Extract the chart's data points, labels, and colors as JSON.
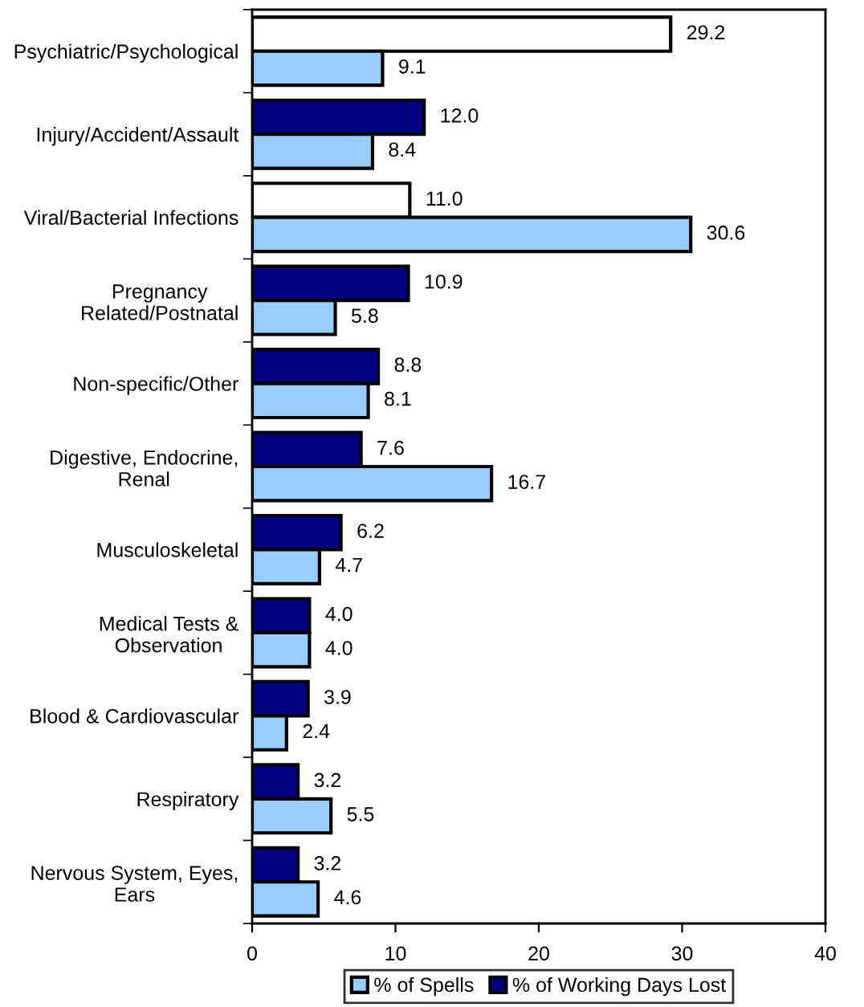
{
  "chart_data": {
    "type": "bar",
    "orientation": "horizontal",
    "categories": [
      "Psychiatric/Psychological",
      "Injury/Accident/Assault",
      "Viral/Bacterial Infections",
      "Pregnancy\nRelated/Postnatal",
      "Non-specific/Other",
      "Digestive, Endocrine,\nRenal",
      "Musculoskeletal",
      "Medical Tests &\nObservation",
      "Blood & Cardiovascular",
      "Respiratory",
      "Nervous System, Eyes,\nEars"
    ],
    "series": [
      {
        "name": "% of Working Days Lost",
        "color": "#000080",
        "colors": [
          "#ffffff",
          "#000080",
          "#ffffff",
          "#000080",
          "#000080",
          "#000080",
          "#000080",
          "#000080",
          "#000080",
          "#000080",
          "#000080"
        ],
        "values": [
          29.2,
          12.0,
          11.0,
          10.9,
          8.8,
          7.6,
          6.2,
          4.0,
          3.9,
          3.2,
          3.2
        ],
        "value_labels": [
          "29.2",
          "12.0",
          "11.0",
          "10.9",
          "8.8",
          "7.6",
          "6.2",
          "4.0",
          "3.9",
          "3.2",
          "3.2"
        ]
      },
      {
        "name": "% of Spells",
        "color": "#99ccff",
        "values": [
          9.1,
          8.4,
          30.6,
          5.8,
          8.1,
          16.7,
          4.7,
          4.0,
          2.4,
          5.5,
          4.6
        ],
        "value_labels": [
          "9.1",
          "8.4",
          "30.6",
          "5.8",
          "8.1",
          "16.7",
          "4.7",
          "4.0",
          "2.4",
          "5.5",
          "4.6"
        ]
      }
    ],
    "xlim": [
      0,
      40
    ],
    "xticks": [
      0,
      10,
      20,
      30,
      40
    ],
    "grid": false,
    "legend": "bottom"
  }
}
